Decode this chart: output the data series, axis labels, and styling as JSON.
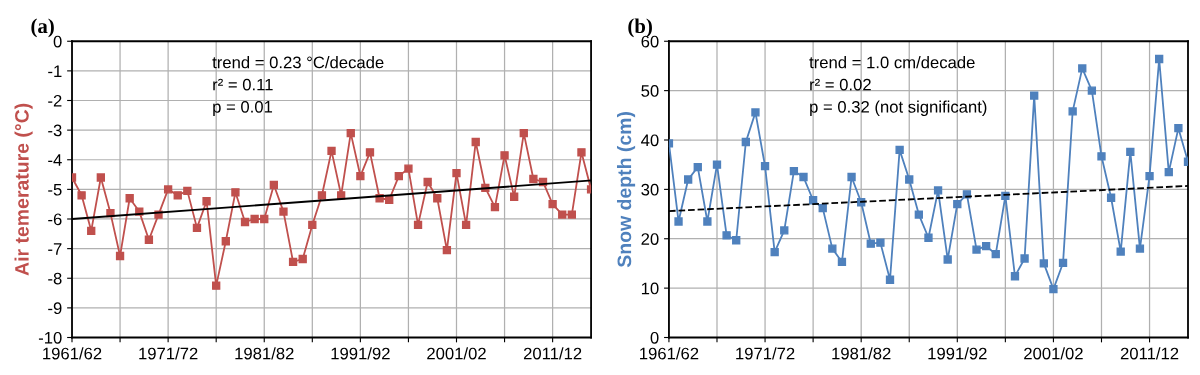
{
  "chart_data": [
    {
      "type": "line",
      "title": "(a)",
      "ylabel": "Air temerature (°C)",
      "categories": [
        "1961/62",
        null,
        null,
        null,
        null,
        null,
        null,
        null,
        null,
        null,
        "1971/72",
        null,
        null,
        null,
        null,
        null,
        null,
        null,
        null,
        null,
        "1981/82",
        null,
        null,
        null,
        null,
        null,
        null,
        null,
        null,
        null,
        "1991/92",
        null,
        null,
        null,
        null,
        null,
        null,
        null,
        null,
        null,
        "2001/02",
        null,
        null,
        null,
        null,
        null,
        null,
        null,
        null,
        null,
        "2011/12",
        null,
        null,
        null,
        null
      ],
      "series": [
        {
          "color": "#c0504d",
          "marker": "square",
          "values": [
            -4.6,
            -5.2,
            -6.4,
            -4.6,
            -5.8,
            -7.25,
            -5.3,
            -5.75,
            -6.7,
            -5.85,
            -5.0,
            -5.2,
            -5.05,
            -6.3,
            -5.4,
            -8.25,
            -6.75,
            -5.1,
            -6.1,
            -6.0,
            -6.0,
            -4.85,
            -5.75,
            -7.45,
            -7.35,
            -6.2,
            -5.2,
            -3.7,
            -5.2,
            -3.1,
            -4.55,
            -3.75,
            -5.3,
            -5.35,
            -4.55,
            -4.3,
            -6.2,
            -4.75,
            -5.3,
            -7.05,
            -4.45,
            -6.2,
            -3.4,
            -4.95,
            -5.6,
            -3.85,
            -5.25,
            -3.1,
            -4.65,
            -4.75,
            -5.5,
            -5.85,
            -5.85,
            -3.75,
            -5.0
          ]
        },
        {
          "type": "line",
          "color": "#000000",
          "marker": "none",
          "line_style": "solid",
          "values": [
            -6.0,
            null,
            null,
            null,
            null,
            null,
            null,
            null,
            null,
            null,
            null,
            null,
            null,
            null,
            null,
            null,
            null,
            null,
            null,
            null,
            null,
            null,
            null,
            null,
            null,
            null,
            null,
            null,
            null,
            null,
            null,
            null,
            null,
            null,
            null,
            null,
            null,
            null,
            null,
            null,
            null,
            null,
            null,
            null,
            null,
            null,
            null,
            null,
            null,
            null,
            null,
            null,
            null,
            null,
            -4.7
          ]
        }
      ],
      "ylim": [
        -10,
        0
      ],
      "yticks": [
        -10,
        -9,
        -8,
        -7,
        -6,
        -5,
        -4,
        -3,
        -2,
        -1,
        0
      ],
      "grid": true,
      "annotations": [
        "trend = 0.23 °C/decade",
        "r² = 0.11",
        "p = 0.01"
      ]
    },
    {
      "type": "line",
      "title": "(b)",
      "ylabel": "Snow depth (cm)",
      "categories": [
        "1961/62",
        null,
        null,
        null,
        null,
        null,
        null,
        null,
        null,
        null,
        "1971/72",
        null,
        null,
        null,
        null,
        null,
        null,
        null,
        null,
        null,
        "1981/82",
        null,
        null,
        null,
        null,
        null,
        null,
        null,
        null,
        null,
        "1991/92",
        null,
        null,
        null,
        null,
        null,
        null,
        null,
        null,
        null,
        "2001/02",
        null,
        null,
        null,
        null,
        null,
        null,
        null,
        null,
        null,
        "2011/12",
        null,
        null,
        null,
        null
      ],
      "series": [
        {
          "color": "#4f81bd",
          "marker": "square",
          "values": [
            39.3,
            23.5,
            32,
            34.5,
            23.5,
            35,
            20.7,
            19.7,
            39.6,
            45.6,
            34.7,
            17.3,
            21.7,
            33.7,
            32.5,
            27.8,
            26.2,
            18,
            15.3,
            32.5,
            27.4,
            19,
            19.2,
            11.7,
            38,
            32,
            24.9,
            20.2,
            29.8,
            15.8,
            27,
            29,
            17.8,
            18.5,
            16.9,
            28.7,
            12.4,
            16,
            49,
            15,
            9.8,
            15.1,
            45.8,
            54.5,
            50,
            36.7,
            28.3,
            17.4,
            37.6,
            18,
            32.7,
            56.4,
            33.5,
            42.4,
            35.6
          ]
        },
        {
          "type": "line",
          "color": "#000000",
          "marker": "none",
          "line_style": "dashed",
          "values": [
            25.6,
            null,
            null,
            null,
            null,
            null,
            null,
            null,
            null,
            null,
            null,
            null,
            null,
            null,
            null,
            null,
            null,
            null,
            null,
            null,
            null,
            null,
            null,
            null,
            null,
            null,
            null,
            null,
            null,
            null,
            null,
            null,
            null,
            null,
            null,
            null,
            null,
            null,
            null,
            null,
            null,
            null,
            null,
            null,
            null,
            null,
            null,
            null,
            null,
            null,
            null,
            null,
            null,
            null,
            30.7
          ]
        }
      ],
      "ylim": [
        0,
        60
      ],
      "yticks": [
        0,
        10,
        20,
        30,
        40,
        50,
        60
      ],
      "grid": true,
      "annotations": [
        "trend = 1.0 cm/decade",
        "r² = 0.02",
        "p = 0.32 (not significant)"
      ]
    }
  ]
}
